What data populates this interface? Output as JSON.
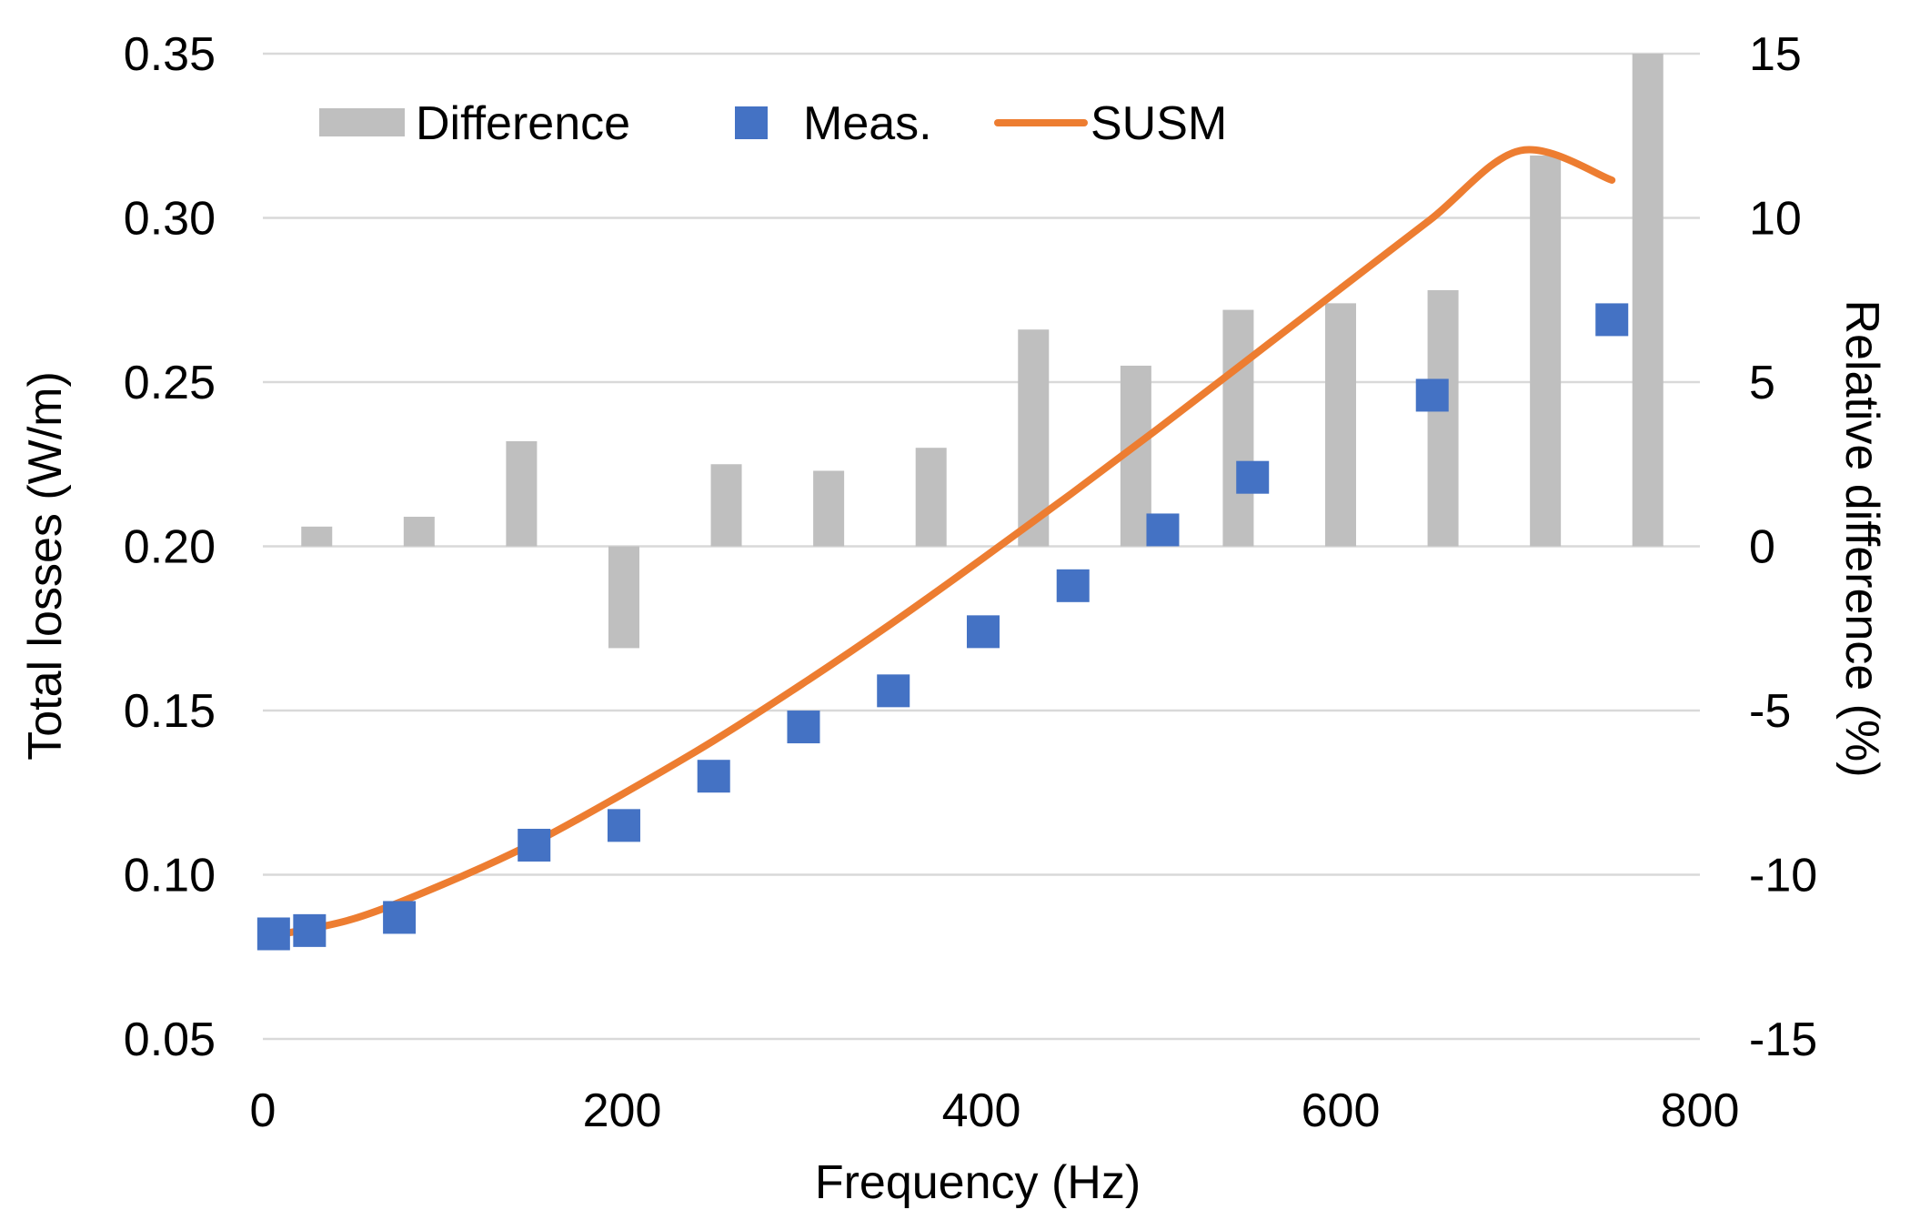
{
  "colors": {
    "difference": "#bfbfbf",
    "measured": "#4472c4",
    "susm": "#ed7d31",
    "grid": "#d9d9d9",
    "text": "#000000"
  },
  "chart_data": {
    "type": "bar+scatter+line",
    "title": "",
    "xlabel": "Frequency (Hz)",
    "ylabel_left": "Total losses (W/m)",
    "ylabel_right": "Relative difference (%)",
    "xlim": [
      0,
      800
    ],
    "ylim_left": [
      0.05,
      0.35
    ],
    "ylim_right": [
      -15,
      15
    ],
    "x_ticks": [
      "0",
      "200",
      "400",
      "600",
      "800"
    ],
    "y_left_ticks": [
      "0.05",
      "0.10",
      "0.15",
      "0.20",
      "0.25",
      "0.30",
      "0.35"
    ],
    "y_right_ticks": [
      "-15",
      "-10",
      "-5",
      "0",
      "5",
      "10",
      "15"
    ],
    "grid": true,
    "legend_position": "top-left",
    "series": [
      {
        "name": "Difference",
        "kind": "bar",
        "axis": "right",
        "x": [
          30,
          87,
          144,
          201,
          258,
          315,
          372,
          429,
          486,
          543,
          600,
          657,
          714,
          771
        ],
        "values": [
          0.6,
          0.9,
          3.2,
          -3.1,
          2.5,
          2.3,
          3.0,
          6.6,
          5.5,
          7.2,
          7.4,
          7.8,
          11.9,
          15.0
        ]
      },
      {
        "name": "Meas.",
        "kind": "scatter",
        "axis": "left",
        "x": [
          6,
          26,
          76,
          151,
          201,
          251,
          301,
          351,
          401,
          451,
          501,
          551,
          651,
          751
        ],
        "values": [
          0.082,
          0.083,
          0.087,
          0.109,
          0.115,
          0.13,
          0.145,
          0.156,
          0.174,
          0.188,
          0.205,
          0.221,
          0.246,
          0.269
        ]
      },
      {
        "name": "SUSM",
        "kind": "line",
        "axis": "left",
        "x": [
          6,
          50,
          100,
          150,
          200,
          250,
          300,
          350,
          400,
          450,
          500,
          550,
          600,
          650,
          700,
          751
        ],
        "values": [
          0.0815,
          0.0865,
          0.097,
          0.1095,
          0.1245,
          0.1405,
          0.158,
          0.1765,
          0.196,
          0.216,
          0.2365,
          0.2575,
          0.2785,
          0.2995,
          0.3205,
          0.3115
        ]
      }
    ]
  }
}
